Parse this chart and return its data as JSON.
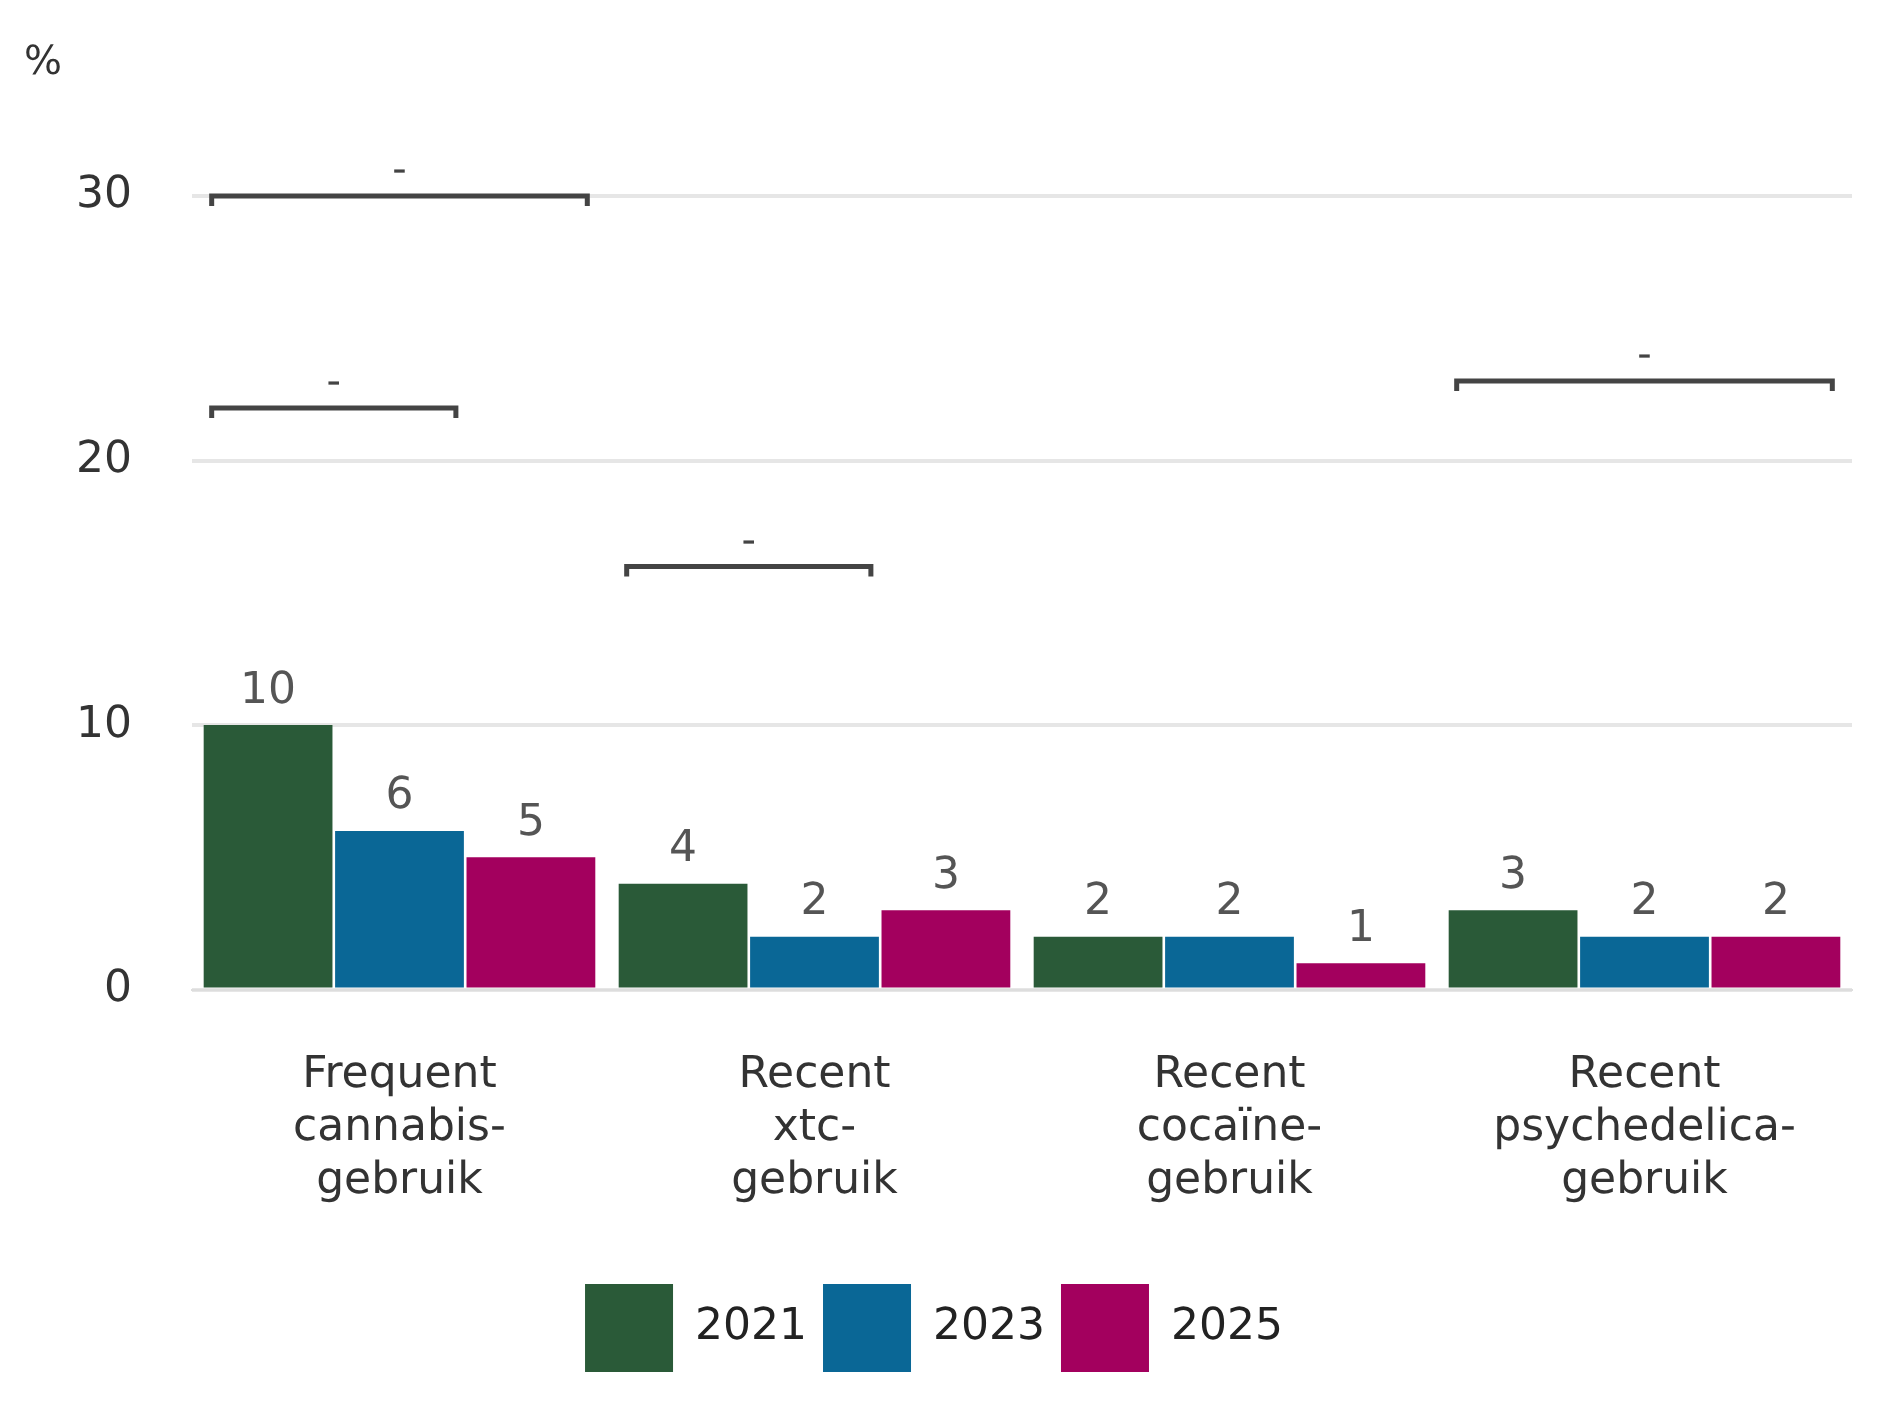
{
  "chart_data": {
    "type": "bar",
    "ylabel": "%",
    "categories": [
      "Frequent cannabis-gebruik",
      "Recent xtc-gebruik",
      "Recent cocaïne-gebruik",
      "Recent psychedelica-gebruik"
    ],
    "series": [
      {
        "name": "2021",
        "color": "#2a5a38",
        "values": [
          10,
          4,
          2,
          3
        ]
      },
      {
        "name": "2023",
        "color": "#0a6796",
        "values": [
          6,
          2,
          2,
          2
        ]
      },
      {
        "name": "2025",
        "color": "#a3005e",
        "values": [
          5,
          3,
          1,
          2
        ]
      }
    ],
    "ylim": [
      0,
      30
    ],
    "yticks": [
      0,
      10,
      20,
      30
    ],
    "grid": "y",
    "legend": "bottom",
    "data_labels": true,
    "annotations": [
      "-",
      "-",
      "-",
      "-"
    ]
  }
}
